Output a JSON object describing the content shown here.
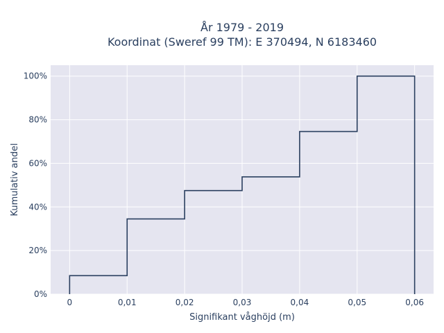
{
  "chart_data": {
    "type": "line",
    "subtype": "step-ecdf",
    "title_lines": [
      "År 1979 - 2019",
      "Koordinat (Sweref 99 TM): E 370494, N 6183460"
    ],
    "xlabel": "Signifikant våghöjd (m)",
    "ylabel": "Kumulativ andel",
    "x_ticks": [
      0,
      0.01,
      0.02,
      0.03,
      0.04,
      0.05,
      0.06
    ],
    "x_tick_labels": [
      "0",
      "0,01",
      "0,02",
      "0,03",
      "0,04",
      "0,05",
      "0,06"
    ],
    "y_ticks": [
      0,
      20,
      40,
      60,
      80,
      100
    ],
    "y_tick_labels": [
      "0%",
      "20%",
      "40%",
      "60%",
      "80%",
      "100%"
    ],
    "xlim": [
      -0.0033,
      0.0633
    ],
    "ylim": [
      0,
      105
    ],
    "series": [
      {
        "x": [
          0,
          0.01,
          0.02,
          0.03,
          0.04,
          0.05,
          0.06
        ],
        "y": [
          8.5,
          34.5,
          47.5,
          53.8,
          74.6,
          100,
          100
        ]
      }
    ],
    "grid": true,
    "legend": false,
    "colors": {
      "plot_bg": "#e5e5f0",
      "grid": "#ffffff",
      "line": "#2a3f5f",
      "text": "#2a3f5f"
    }
  }
}
